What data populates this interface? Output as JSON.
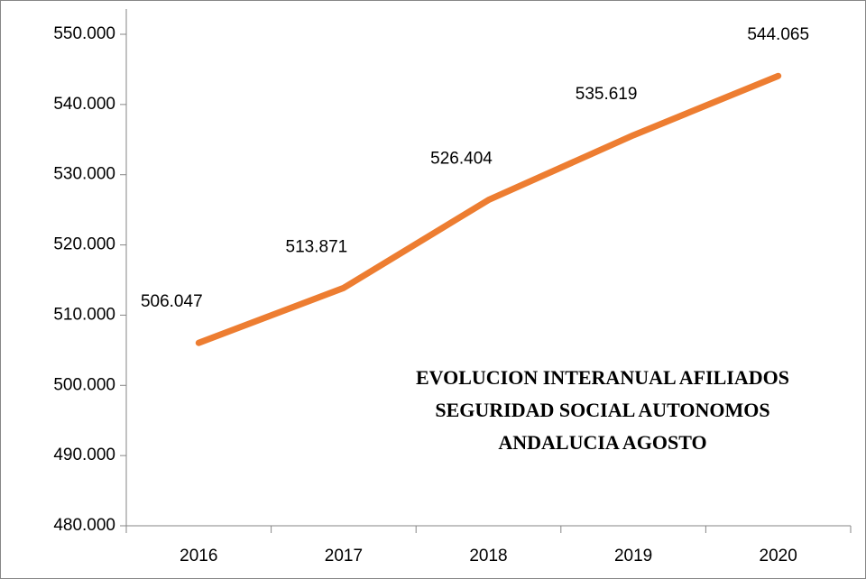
{
  "chart_data": {
    "type": "line",
    "title": [
      "EVOLUCION INTERANUAL AFILIADOS",
      "SEGURIDAD SOCIAL AUTONOMOS",
      "ANDALUCIA AGOSTO"
    ],
    "categories": [
      "2016",
      "2017",
      "2018",
      "2019",
      "2020"
    ],
    "series": [
      {
        "name": null,
        "color": "#ed7d31",
        "values": [
          506047,
          513871,
          526404,
          535619,
          544065
        ],
        "value_labels": [
          "506.047",
          "513.871",
          "526.404",
          "535.619",
          "544.065"
        ]
      }
    ],
    "ylim": [
      480000,
      550000
    ],
    "yticks": [
      {
        "value": 480000,
        "label": "480.000"
      },
      {
        "value": 490000,
        "label": "490.000"
      },
      {
        "value": 500000,
        "label": "500.000"
      },
      {
        "value": 510000,
        "label": "510.000"
      },
      {
        "value": 520000,
        "label": "520.000"
      },
      {
        "value": 530000,
        "label": "530.000"
      },
      {
        "value": 540000,
        "label": "540.000"
      },
      {
        "value": 550000,
        "label": "550.000"
      }
    ],
    "grid": false
  }
}
